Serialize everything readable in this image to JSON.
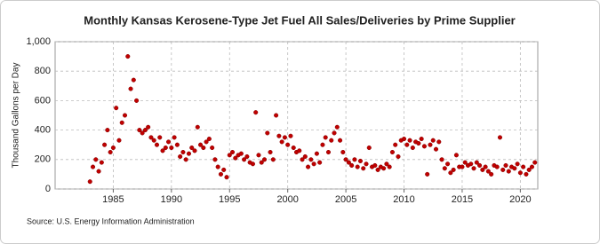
{
  "chart_data": {
    "type": "scatter",
    "title": "Monthly Kansas Kerosene-Type Jet Fuel All Sales/Deliveries by Prime Supplier",
    "y_label": "Thousand Gallons per Day",
    "source": "Source: U.S. Energy Information Administration",
    "color": "#c00000",
    "grid": true,
    "xlim": [
      1980,
      2021.5
    ],
    "xticks": [
      1985,
      1990,
      1995,
      2000,
      2005,
      2010,
      2015,
      2020
    ],
    "ylim": [
      0,
      1000
    ],
    "yticks": [
      0,
      200,
      400,
      600,
      800,
      {
        "value": 1000,
        "label": "1,000"
      }
    ],
    "x": [
      1983,
      1983.25,
      1983.5,
      1983.75,
      1984,
      1984.25,
      1984.5,
      1984.75,
      1985,
      1985.25,
      1985.5,
      1985.75,
      1986,
      1986.25,
      1986.5,
      1986.75,
      1987,
      1987.25,
      1987.5,
      1987.75,
      1988,
      1988.25,
      1988.5,
      1988.75,
      1989,
      1989.25,
      1989.5,
      1989.75,
      1990,
      1990.25,
      1990.5,
      1990.75,
      1991,
      1991.25,
      1991.5,
      1991.75,
      1992,
      1992.25,
      1992.5,
      1992.75,
      1993,
      1993.25,
      1993.5,
      1993.75,
      1994,
      1994.25,
      1994.5,
      1994.75,
      1995,
      1995.25,
      1995.5,
      1995.75,
      1996,
      1996.25,
      1996.5,
      1996.75,
      1997,
      1997.25,
      1997.5,
      1997.75,
      1998,
      1998.25,
      1998.5,
      1998.75,
      1999,
      1999.25,
      1999.5,
      1999.75,
      2000,
      2000.25,
      2000.5,
      2000.75,
      2001,
      2001.25,
      2001.5,
      2001.75,
      2002,
      2002.25,
      2002.5,
      2002.75,
      2003,
      2003.25,
      2003.5,
      2003.75,
      2004,
      2004.25,
      2004.5,
      2004.75,
      2005,
      2005.25,
      2005.5,
      2005.75,
      2006,
      2006.25,
      2006.5,
      2006.75,
      2007,
      2007.25,
      2007.5,
      2007.75,
      2008,
      2008.25,
      2008.5,
      2008.75,
      2009,
      2009.25,
      2009.5,
      2009.75,
      2010,
      2010.25,
      2010.5,
      2010.75,
      2011,
      2011.25,
      2011.5,
      2011.75,
      2012,
      2012.25,
      2012.5,
      2012.75,
      2013,
      2013.25,
      2013.5,
      2013.75,
      2014,
      2014.25,
      2014.5,
      2014.75,
      2015,
      2015.25,
      2015.5,
      2015.75,
      2016,
      2016.25,
      2016.5,
      2016.75,
      2017,
      2017.25,
      2017.5,
      2017.75,
      2018,
      2018.25,
      2018.5,
      2018.75,
      2019,
      2019.25,
      2019.5,
      2019.75,
      2020,
      2020.25,
      2020.5,
      2020.75,
      2021,
      2021.25
    ],
    "values": [
      50,
      150,
      200,
      120,
      180,
      300,
      400,
      250,
      280,
      550,
      330,
      450,
      500,
      900,
      680,
      740,
      600,
      400,
      380,
      400,
      420,
      350,
      330,
      300,
      350,
      260,
      280,
      320,
      280,
      350,
      300,
      220,
      250,
      200,
      240,
      280,
      260,
      420,
      300,
      280,
      320,
      340,
      280,
      200,
      150,
      100,
      130,
      80,
      230,
      250,
      210,
      230,
      240,
      200,
      220,
      180,
      170,
      520,
      230,
      180,
      200,
      380,
      250,
      200,
      500,
      360,
      320,
      350,
      300,
      360,
      280,
      250,
      260,
      200,
      220,
      150,
      200,
      170,
      240,
      180,
      300,
      350,
      250,
      330,
      380,
      420,
      330,
      250,
      200,
      180,
      160,
      200,
      150,
      190,
      140,
      170,
      280,
      150,
      160,
      130,
      150,
      140,
      170,
      150,
      250,
      300,
      220,
      330,
      340,
      300,
      330,
      280,
      320,
      310,
      340,
      290,
      100,
      300,
      330,
      270,
      320,
      200,
      140,
      170,
      110,
      130,
      230,
      150,
      150,
      180,
      160,
      170,
      140,
      180,
      160,
      130,
      150,
      120,
      100,
      160,
      150,
      350,
      130,
      160,
      120,
      150,
      140,
      170,
      110,
      150,
      100,
      130,
      150,
      180
    ]
  }
}
